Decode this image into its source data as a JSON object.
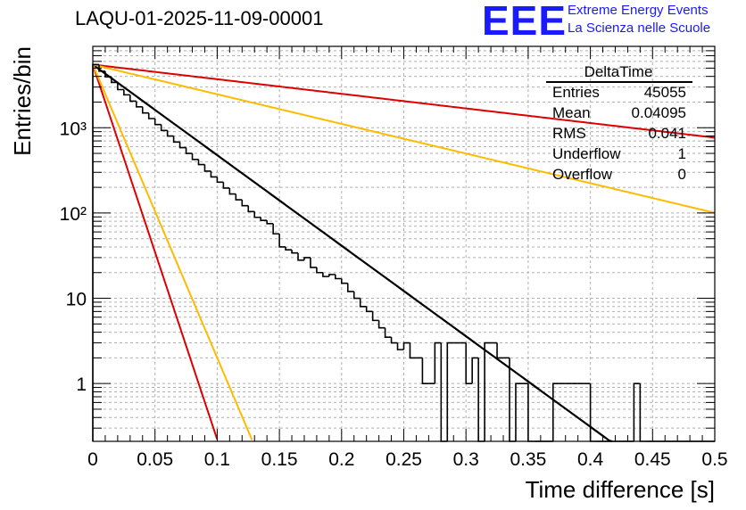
{
  "header": {
    "title": "LAQU-01-2025-11-09-00001",
    "logo": "EEE",
    "project_line1": "Extreme Energy Events",
    "project_line2": "La Scienza nelle Scuole"
  },
  "stats": {
    "name": "DeltaTime",
    "rows": [
      {
        "label": "Entries",
        "value": "45055"
      },
      {
        "label": "Mean",
        "value": "0.04095"
      },
      {
        "label": "RMS",
        "value": "0.041"
      },
      {
        "label": "Underflow",
        "value": "1"
      },
      {
        "label": "Overflow",
        "value": "0"
      }
    ]
  },
  "chart_data": {
    "type": "histogram",
    "title": "LAQU-01-2025-11-09-00001",
    "xlabel": "Time difference [s]",
    "ylabel": "Entries/bin",
    "yscale": "log",
    "xlim": [
      0,
      0.5
    ],
    "ylim": [
      0.21,
      9000
    ],
    "grid": true,
    "x_ticks": [
      "0",
      "0.05",
      "0.1",
      "0.15",
      "0.2",
      "0.25",
      "0.3",
      "0.35",
      "0.4",
      "0.45",
      "0.5"
    ],
    "y_ticks": [
      {
        "value": 1,
        "label": "1"
      },
      {
        "value": 10,
        "label": "10"
      },
      {
        "value": 100,
        "label": "10²"
      },
      {
        "value": 1000,
        "label": "10³"
      }
    ],
    "histogram": {
      "bin_width": 0.005,
      "color": "#000000",
      "counts": [
        5500,
        4600,
        3950,
        3400,
        2800,
        2430,
        2050,
        1760,
        1490,
        1280,
        1090,
        930,
        800,
        680,
        585,
        500,
        425,
        370,
        310,
        265,
        230,
        196,
        167,
        143,
        122,
        104,
        89,
        82,
        75,
        57,
        40,
        37,
        34,
        28,
        30,
        23,
        20,
        18,
        19,
        17,
        15,
        12,
        10,
        8,
        7,
        5.5,
        4.5,
        3.5,
        3,
        2.5,
        3,
        2,
        2,
        1,
        1,
        3,
        0,
        3,
        3,
        3,
        1,
        2,
        0,
        3,
        3,
        2,
        2,
        0,
        1,
        1,
        0,
        0,
        0,
        0,
        1,
        1,
        1,
        1,
        1,
        1,
        0,
        0,
        0,
        0,
        0,
        0,
        0,
        1,
        0,
        0,
        0,
        0,
        0,
        0,
        0,
        0,
        0,
        0,
        0,
        0
      ]
    },
    "series": [
      {
        "name": "fit",
        "color": "#000000",
        "amplitude": 5500,
        "tau": 0.0409,
        "x_end": 0.4195
      },
      {
        "name": "red steep",
        "color": "#dd0000",
        "amplitude": 5500,
        "tau": 0.00988,
        "x_end": 0.1
      },
      {
        "name": "orange steep",
        "color": "#ffbb00",
        "amplitude": 5500,
        "tau": 0.01263,
        "x_end": 0.128
      },
      {
        "name": "red slow",
        "color": "#dd0000",
        "amplitude": 5500,
        "tau": 0.2535,
        "x_end": 0.5
      },
      {
        "name": "orange slow",
        "color": "#ffbb00",
        "amplitude": 5500,
        "tau": 0.1249,
        "x_end": 0.5
      }
    ]
  }
}
